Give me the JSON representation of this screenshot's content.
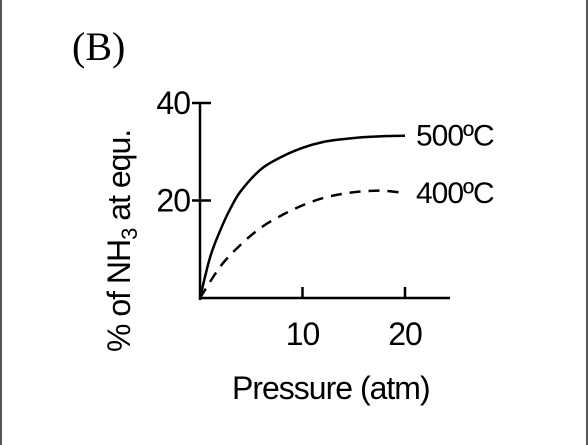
{
  "chart_data": {
    "type": "line",
    "panel_label": "(B)",
    "title": "",
    "xlabel": "Pressure (atm)",
    "ylabel": {
      "prefix": "% of NH",
      "subscript": "3",
      "suffix": " at equ."
    },
    "xlim": [
      0,
      20
    ],
    "ylim": [
      0,
      40
    ],
    "x_ticks": [
      {
        "value": 10,
        "label": "10"
      },
      {
        "value": 20,
        "label": "20"
      }
    ],
    "y_ticks": [
      {
        "value": 20,
        "label": "20"
      },
      {
        "value": 40,
        "label": "40"
      }
    ],
    "grid": false,
    "series": [
      {
        "name": "500ºC",
        "style": "solid",
        "x": [
          0,
          1,
          2,
          3,
          4,
          6,
          8,
          10,
          12,
          14,
          16,
          18,
          20
        ],
        "y": [
          0,
          8.5,
          14,
          18.5,
          22,
          26.5,
          29,
          30.8,
          32,
          32.6,
          33,
          33.2,
          33.3
        ]
      },
      {
        "name": "400ºC",
        "style": "dashed",
        "x": [
          0,
          2,
          4,
          6,
          8,
          10,
          12,
          14,
          16,
          18,
          20
        ],
        "y": [
          0,
          6.5,
          11,
          14.5,
          17,
          19,
          20.5,
          21.4,
          21.9,
          22,
          21.5
        ]
      }
    ]
  }
}
